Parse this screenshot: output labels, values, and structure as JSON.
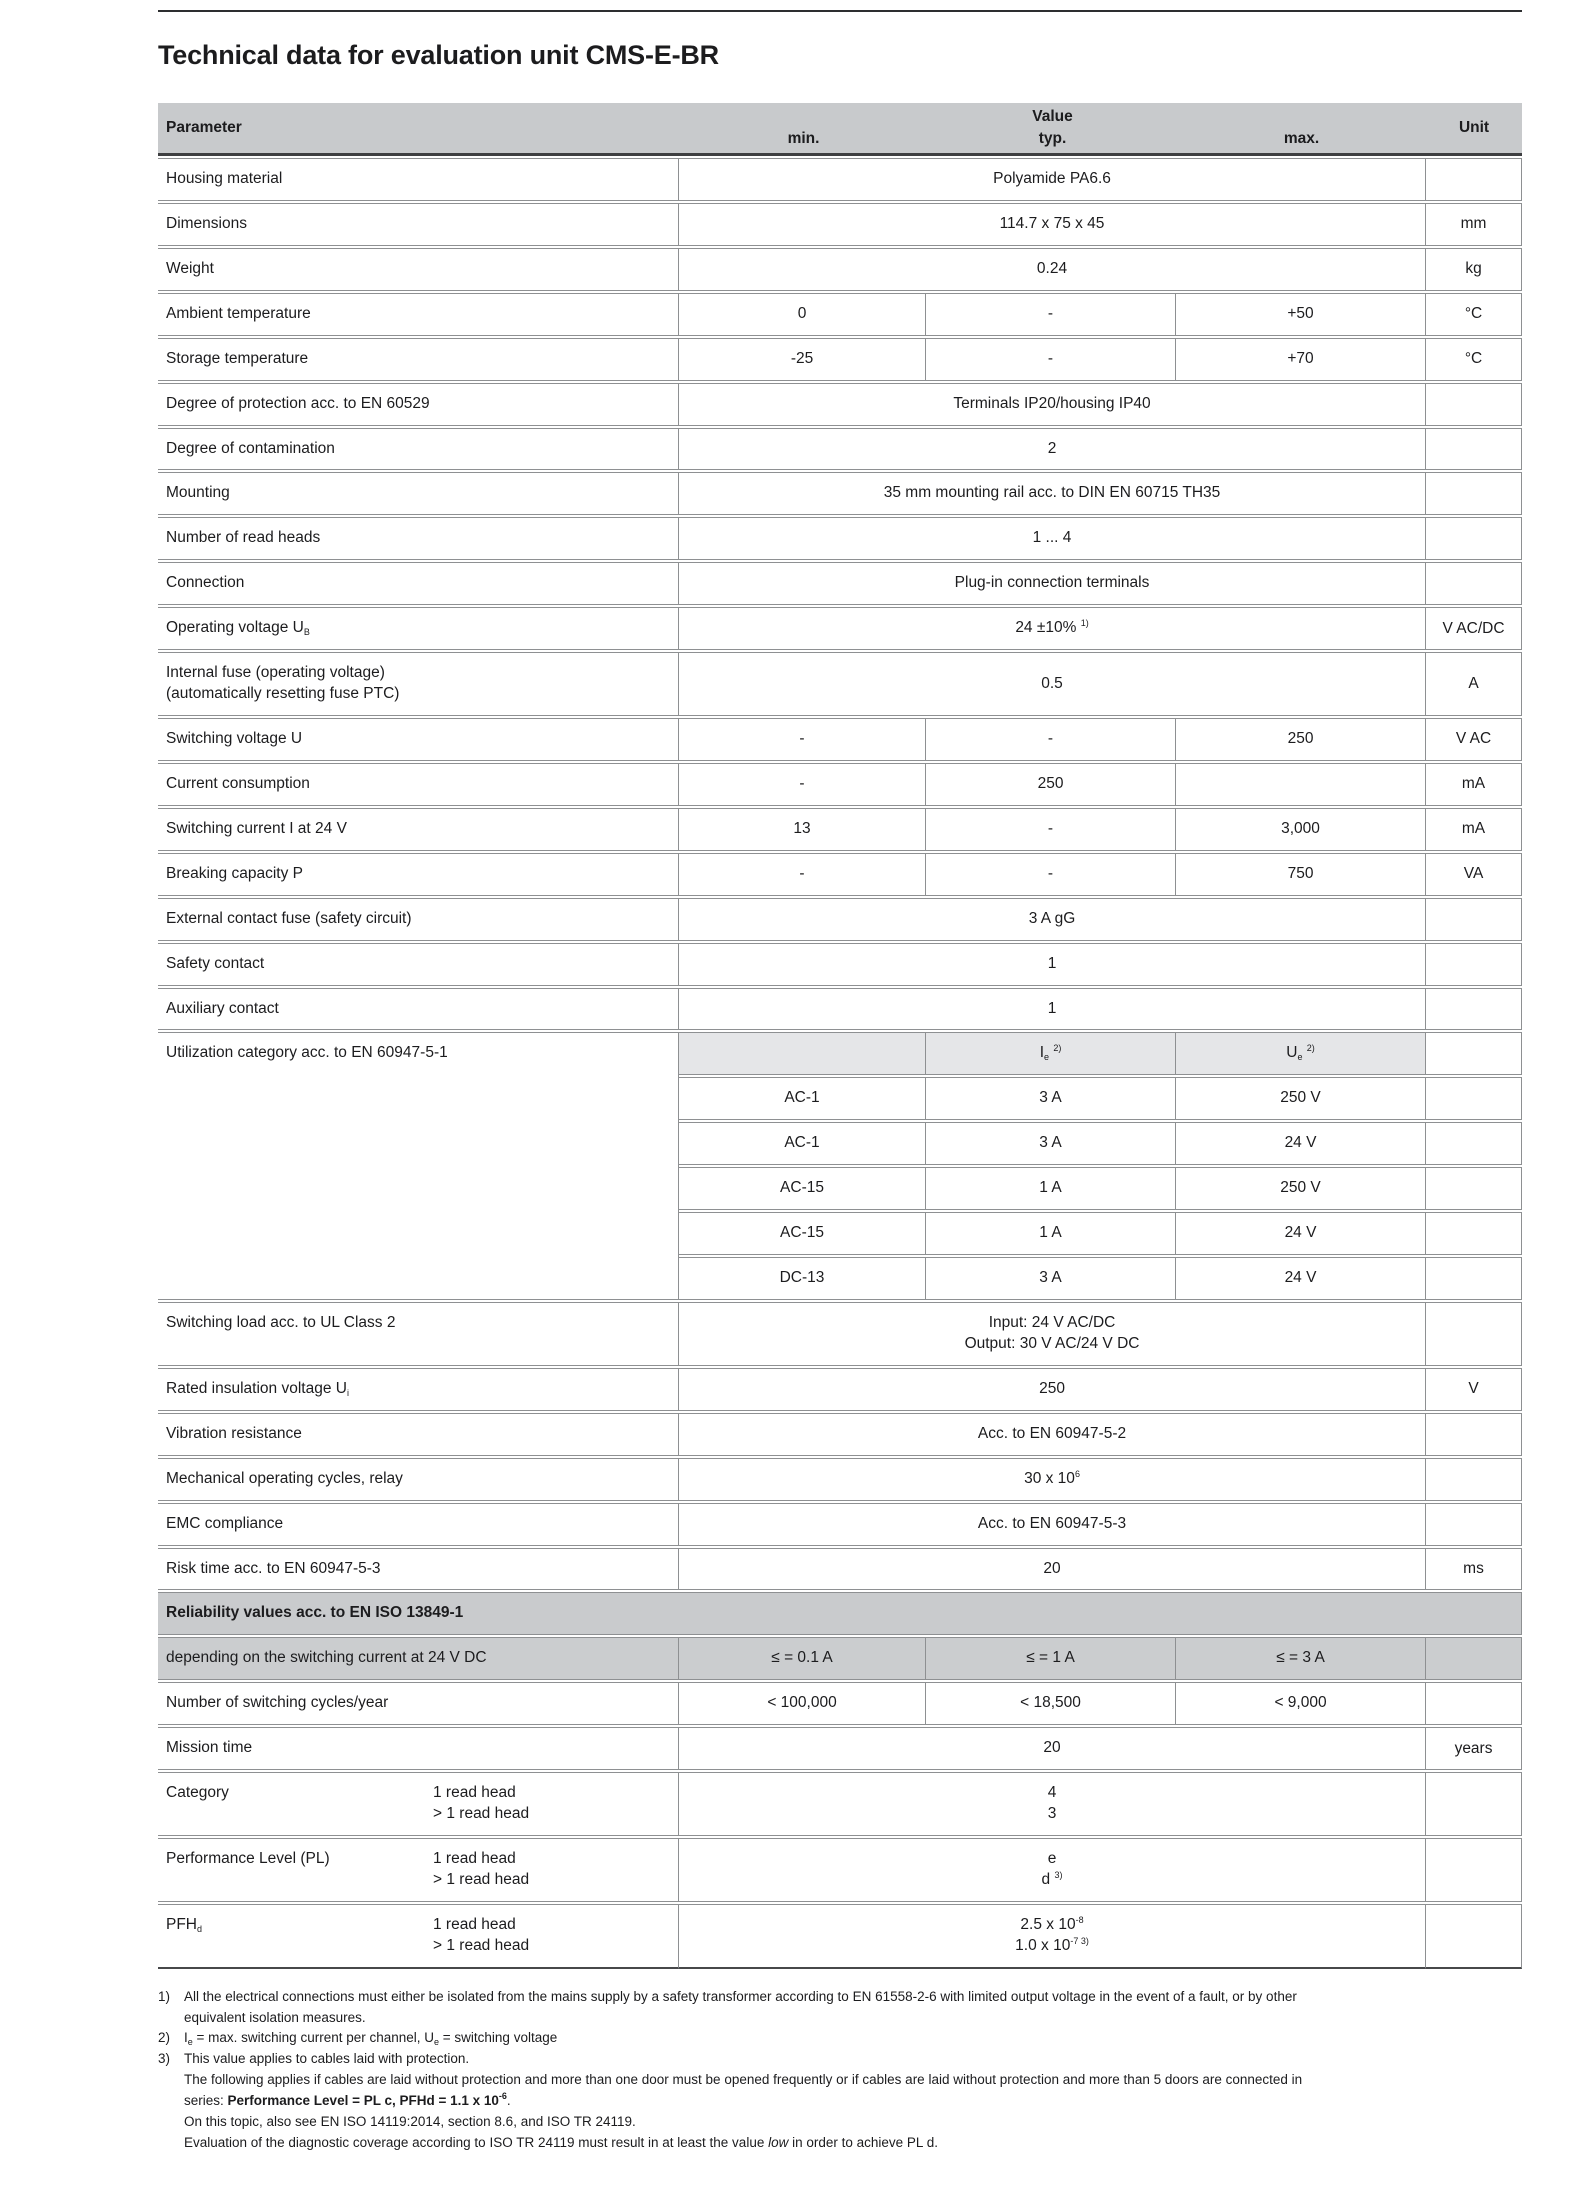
{
  "page": {
    "title": "Technical data for evaluation unit CMS-E-BR"
  },
  "colors": {
    "header_grey": "#c8cacc",
    "section_grey": "#c9cbcd",
    "shaded_row_grey": "#cbcdcf",
    "subheader_grey": "#e5e6e8",
    "border_grey": "#8e9092",
    "rule_dark": "#2d2e30"
  },
  "table": {
    "header": {
      "parameter": "Parameter",
      "value": "Value",
      "min": "min.",
      "typ": "typ.",
      "max": "max.",
      "unit": "Unit"
    },
    "rows": [
      {
        "n": "housing-material",
        "p": [
          [
            "Housing material"
          ]
        ],
        "v": [
          [
            "Polyamide PA6.6"
          ]
        ],
        "u": ""
      },
      {
        "n": "dimensions",
        "p": [
          [
            "Dimensions"
          ]
        ],
        "v": [
          [
            "114.7 x 75 x 45"
          ]
        ],
        "u": "mm"
      },
      {
        "n": "weight",
        "p": [
          [
            "Weight"
          ]
        ],
        "v": [
          [
            "0.24"
          ]
        ],
        "u": "kg"
      },
      {
        "n": "ambient-temperature",
        "p": [
          [
            "Ambient temperature"
          ]
        ],
        "min": [
          [
            "0"
          ]
        ],
        "typ": [
          [
            "-"
          ]
        ],
        "max": [
          [
            "+50"
          ]
        ],
        "u": "°C"
      },
      {
        "n": "storage-temperature",
        "p": [
          [
            "Storage temperature"
          ]
        ],
        "min": [
          [
            "-25"
          ]
        ],
        "typ": [
          [
            "-"
          ]
        ],
        "max": [
          [
            "+70"
          ]
        ],
        "u": "°C"
      },
      {
        "n": "degree-of-protection",
        "p": [
          [
            "Degree of protection acc. to EN 60529"
          ]
        ],
        "v": [
          [
            "Terminals IP20/housing IP40"
          ]
        ],
        "u": ""
      },
      {
        "n": "degree-of-contamination",
        "p": [
          [
            "Degree of contamination"
          ]
        ],
        "v": [
          [
            "2"
          ]
        ],
        "u": ""
      },
      {
        "n": "mounting",
        "p": [
          [
            "Mounting"
          ]
        ],
        "v": [
          [
            "35 mm mounting rail acc. to DIN EN 60715 TH35"
          ]
        ],
        "u": ""
      },
      {
        "n": "number-of-read-heads",
        "p": [
          [
            "Number of read heads"
          ]
        ],
        "v": [
          [
            "1 ... 4"
          ]
        ],
        "u": ""
      },
      {
        "n": "connection",
        "p": [
          [
            "Connection"
          ]
        ],
        "v": [
          [
            "Plug-in connection terminals"
          ]
        ],
        "u": ""
      },
      {
        "n": "operating-voltage",
        "p": [
          [
            "Operating voltage U",
            {
              "sub": "B"
            }
          ]
        ],
        "v": [
          [
            "24 ±10% ",
            {
              "sup": "1)"
            }
          ]
        ],
        "u": "V AC/DC"
      },
      {
        "n": "internal-fuse",
        "p": [
          [
            "Internal fuse (operating voltage)"
          ],
          [
            "(automatically resetting fuse PTC)"
          ]
        ],
        "v": [
          [
            "0.5"
          ]
        ],
        "u": "A"
      },
      {
        "n": "switching-voltage",
        "p": [
          [
            "Switching voltage U"
          ]
        ],
        "min": [
          [
            "-"
          ]
        ],
        "typ": [
          [
            "-"
          ]
        ],
        "max": [
          [
            "250"
          ]
        ],
        "u": "V AC"
      },
      {
        "n": "current-consumption",
        "p": [
          [
            "Current consumption"
          ]
        ],
        "min": [
          [
            "-"
          ]
        ],
        "typ": [
          [
            "250"
          ]
        ],
        "max": [
          [
            ""
          ]
        ],
        "u": "mA"
      },
      {
        "n": "switching-current",
        "p": [
          [
            "Switching current I at 24 V"
          ]
        ],
        "min": [
          [
            "13"
          ]
        ],
        "typ": [
          [
            "-"
          ]
        ],
        "max": [
          [
            "3,000"
          ]
        ],
        "u": "mA"
      },
      {
        "n": "breaking-capacity",
        "p": [
          [
            "Breaking capacity P"
          ]
        ],
        "min": [
          [
            "-"
          ]
        ],
        "typ": [
          [
            "-"
          ]
        ],
        "max": [
          [
            "750"
          ]
        ],
        "u": "VA"
      },
      {
        "n": "external-contact-fuse",
        "p": [
          [
            "External contact fuse (safety circuit)"
          ]
        ],
        "v": [
          [
            "3 A gG"
          ]
        ],
        "u": ""
      },
      {
        "n": "safety-contact",
        "p": [
          [
            "Safety contact"
          ]
        ],
        "v": [
          [
            "1"
          ]
        ],
        "u": ""
      },
      {
        "n": "auxiliary-contact",
        "p": [
          [
            "Auxiliary contact"
          ]
        ],
        "v": [
          [
            "1"
          ]
        ],
        "u": ""
      },
      {
        "n": "utilization-category",
        "block": 6,
        "cellshade": true,
        "p": [
          [
            "Utilization category acc. to EN 60947-5-1"
          ]
        ],
        "min": [
          [
            ""
          ]
        ],
        "typ": [
          [
            "I",
            {
              "sub": "e"
            },
            " ",
            {
              "sup": "2)"
            }
          ]
        ],
        "max": [
          [
            "U",
            {
              "sub": "e"
            },
            " ",
            {
              "sup": "2)"
            }
          ]
        ],
        "u": ""
      },
      {
        "n": "utilization-ac1-250v",
        "p": "skip",
        "min": [
          [
            "AC-1"
          ]
        ],
        "typ": [
          [
            "3 A"
          ]
        ],
        "max": [
          [
            "250 V"
          ]
        ],
        "u": ""
      },
      {
        "n": "utilization-ac1-24v",
        "p": "skip",
        "min": [
          [
            "AC-1"
          ]
        ],
        "typ": [
          [
            "3 A"
          ]
        ],
        "max": [
          [
            "24 V"
          ]
        ],
        "u": ""
      },
      {
        "n": "utilization-ac15-250v",
        "p": "skip",
        "min": [
          [
            "AC-15"
          ]
        ],
        "typ": [
          [
            "1 A"
          ]
        ],
        "max": [
          [
            "250 V"
          ]
        ],
        "u": ""
      },
      {
        "n": "utilization-ac15-24v",
        "p": "skip",
        "min": [
          [
            "AC-15"
          ]
        ],
        "typ": [
          [
            "1 A"
          ]
        ],
        "max": [
          [
            "24 V"
          ]
        ],
        "u": ""
      },
      {
        "n": "utilization-dc13-24v",
        "p": "skip",
        "min": [
          [
            "DC-13"
          ]
        ],
        "typ": [
          [
            "3 A"
          ]
        ],
        "max": [
          [
            "24 V"
          ]
        ],
        "u": ""
      },
      {
        "n": "switching-load",
        "p": [
          [
            "Switching load acc. to UL Class 2"
          ]
        ],
        "v": [
          [
            "Input: 24 V AC/DC"
          ],
          [
            "Output: 30 V AC/24 V DC"
          ]
        ],
        "u": ""
      },
      {
        "n": "rated-insulation-voltage",
        "p": [
          [
            "Rated insulation voltage U",
            {
              "sub": "i"
            }
          ]
        ],
        "v": [
          [
            "250"
          ]
        ],
        "u": "V"
      },
      {
        "n": "vibration-resistance",
        "p": [
          [
            "Vibration resistance"
          ]
        ],
        "v": [
          [
            "Acc. to EN 60947-5-2"
          ]
        ],
        "u": ""
      },
      {
        "n": "mechanical-operating-cycles",
        "p": [
          [
            "Mechanical operating cycles, relay"
          ]
        ],
        "v": [
          [
            "30 x 10",
            {
              "sup": "6"
            }
          ]
        ],
        "u": ""
      },
      {
        "n": "emc-compliance",
        "p": [
          [
            "EMC compliance"
          ]
        ],
        "v": [
          [
            "Acc. to EN 60947-5-3"
          ]
        ],
        "u": ""
      },
      {
        "n": "risk-time",
        "p": [
          [
            "Risk time acc. to EN 60947-5-3"
          ]
        ],
        "v": [
          [
            "20"
          ]
        ],
        "u": "ms"
      },
      {
        "n": "reliability-values",
        "section": [
          [
            "Reliability values acc. to EN ISO 13849-1"
          ]
        ]
      },
      {
        "n": "switching-current-dependency",
        "shade": true,
        "p": [
          [
            "depending on the switching current at 24 V DC"
          ]
        ],
        "min": [
          [
            "≤ = 0.1 A"
          ]
        ],
        "typ": [
          [
            "≤ = 1 A"
          ]
        ],
        "max": [
          [
            "≤ = 3 A"
          ]
        ],
        "u": ""
      },
      {
        "n": "switching-cycles-per-year",
        "p": [
          [
            "Number of switching cycles/year"
          ]
        ],
        "min": [
          [
            "< 100,000"
          ]
        ],
        "typ": [
          [
            "< 18,500"
          ]
        ],
        "max": [
          [
            "< 9,000"
          ]
        ],
        "u": ""
      },
      {
        "n": "mission-time",
        "p": [
          [
            "Mission time"
          ]
        ],
        "v": [
          [
            "20"
          ]
        ],
        "u": "years"
      },
      {
        "n": "category",
        "p": [
          [
            "Category"
          ]
        ],
        "s": [
          [
            "1 read head"
          ],
          [
            "> 1 read head"
          ]
        ],
        "v": [
          [
            "4"
          ],
          [
            "3"
          ]
        ],
        "u": ""
      },
      {
        "n": "performance-level",
        "p": [
          [
            "Performance Level (PL)"
          ]
        ],
        "s": [
          [
            "1 read head"
          ],
          [
            "> 1 read head"
          ]
        ],
        "v": [
          [
            "e"
          ],
          [
            "d ",
            {
              "sup": "3)"
            }
          ]
        ],
        "u": ""
      },
      {
        "n": "pfhd",
        "last": true,
        "p": [
          [
            "PFH",
            {
              "sub": "d"
            }
          ]
        ],
        "s": [
          [
            "1 read head"
          ],
          [
            "> 1 read head"
          ]
        ],
        "v": [
          [
            "2.5 x 10",
            {
              "sup": "-8"
            }
          ],
          [
            "1.0 x 10",
            {
              "sup": "-7 3)"
            }
          ]
        ],
        "u": ""
      }
    ]
  },
  "footnotes": [
    {
      "marker": "1)",
      "lines": [
        [
          "All the electrical connections must either be isolated from the mains supply by a safety transformer according to EN 61558-2-6 with limited output voltage in the event of a fault, or by other"
        ],
        [
          "equivalent isolation measures."
        ]
      ]
    },
    {
      "marker": "2)",
      "lines": [
        [
          "I",
          {
            "sub": "e"
          },
          " = max. switching current per channel, U",
          {
            "sub": "e"
          },
          " = switching voltage"
        ]
      ]
    },
    {
      "marker": "3)",
      "lines": [
        [
          "This value applies to cables laid with protection."
        ],
        [
          "The following applies if cables are laid without protection and more than one door must be opened frequently or if cables are laid without protection and more than 5 doors are connected in"
        ],
        [
          "series: ",
          {
            "b": "Performance Level = PL c, PFHd = 1.1 x 10"
          },
          {
            "bsup": "-6"
          },
          "."
        ],
        [
          "On this topic, also see EN ISO 14119:2014, section 8.6, and ISO TR 24119."
        ],
        [
          "Evaluation of the diagnostic coverage according to ISO TR 24119 must result in at least the value ",
          {
            "i": "low"
          },
          " in order to achieve PL d."
        ]
      ]
    }
  ]
}
